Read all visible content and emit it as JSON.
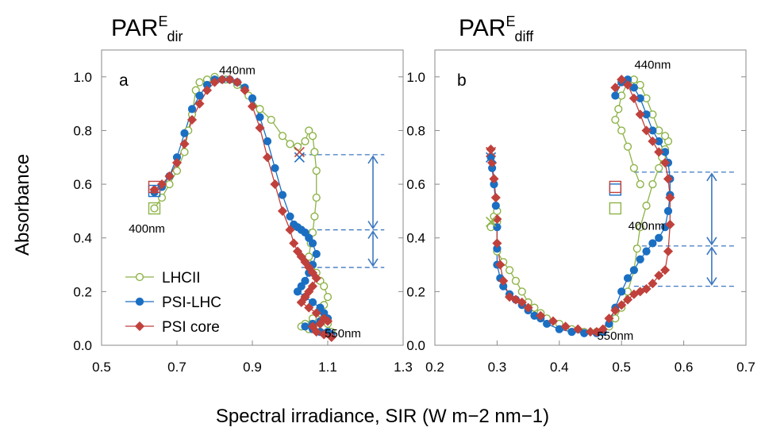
{
  "figure": {
    "ylabel": "Absorbance",
    "xlabel": "Spectral irradiance, SIR (W m−2 nm−1)",
    "legend": [
      {
        "name": "LHCII",
        "color": "#8DB347",
        "marker": "open-circle"
      },
      {
        "name": "PSI-LHC",
        "color": "#1B6FC2",
        "marker": "filled-circle"
      },
      {
        "name": "PSI core",
        "color": "#C0413C",
        "marker": "diamond"
      }
    ],
    "colors": {
      "arrow": "#3E78C0",
      "dashed": "#3E78C0"
    }
  },
  "chart_data": [
    {
      "type": "scatter",
      "panel_label": "a",
      "title_base": "PAR",
      "title_sup": "E",
      "title_sub": "dir",
      "xlim": [
        0.5,
        1.3
      ],
      "ylim": [
        0.0,
        1.1
      ],
      "xticks": [
        "0.5",
        "0.7",
        "0.9",
        "1.1",
        "1.3"
      ],
      "xtick_values": [
        0.5,
        0.7,
        0.9,
        1.1,
        1.3
      ],
      "yticks": [
        "0.0",
        "0.2",
        "0.4",
        "0.6",
        "0.8",
        "1.0"
      ],
      "ytick_values": [
        0.0,
        0.2,
        0.4,
        0.6,
        0.8,
        1.0
      ],
      "annotations": [
        {
          "text": "440nm",
          "x": 0.86,
          "y": 1.01
        },
        {
          "text": "400nm",
          "x": 0.62,
          "y": 0.42
        },
        {
          "text": "550nm",
          "x": 1.14,
          "y": 0.03
        }
      ],
      "series": [
        {
          "name": "LHCII",
          "x": [
            0.64,
            0.66,
            0.68,
            0.7,
            0.72,
            0.73,
            0.74,
            0.75,
            0.76,
            0.78,
            0.8,
            0.83,
            0.86,
            0.89,
            0.92,
            0.95,
            0.98,
            1.0,
            1.02,
            1.04,
            1.05,
            1.06,
            1.065,
            1.07,
            1.07,
            1.065,
            1.06,
            1.055,
            1.05,
            1.06,
            1.07,
            1.08,
            1.09,
            1.1,
            1.09,
            1.08,
            1.06,
            1.04,
            1.03,
            1.05,
            1.07,
            1.09,
            1.1,
            1.11
          ],
          "y": [
            0.51,
            0.55,
            0.6,
            0.65,
            0.72,
            0.8,
            0.86,
            0.95,
            0.98,
            0.99,
            1.0,
            0.99,
            0.97,
            0.93,
            0.88,
            0.84,
            0.78,
            0.75,
            0.74,
            0.76,
            0.8,
            0.78,
            0.72,
            0.65,
            0.55,
            0.48,
            0.42,
            0.38,
            0.33,
            0.3,
            0.27,
            0.24,
            0.22,
            0.18,
            0.15,
            0.12,
            0.1,
            0.08,
            0.07,
            0.06,
            0.06,
            0.07,
            0.08,
            0.05
          ]
        },
        {
          "name": "PSI-LHC",
          "x": [
            0.64,
            0.66,
            0.68,
            0.7,
            0.72,
            0.74,
            0.76,
            0.78,
            0.8,
            0.82,
            0.84,
            0.86,
            0.88,
            0.9,
            0.92,
            0.94,
            0.96,
            0.98,
            1.0,
            1.01,
            1.02,
            1.03,
            1.04,
            1.05,
            1.06,
            1.07,
            1.06,
            1.05,
            1.04,
            1.03,
            1.02,
            1.04,
            1.06,
            1.08,
            1.09,
            1.1,
            1.08,
            1.06,
            1.04,
            1.06,
            1.08,
            1.1,
            1.11
          ],
          "y": [
            0.57,
            0.59,
            0.63,
            0.7,
            0.79,
            0.88,
            0.93,
            0.97,
            0.99,
            0.99,
            0.99,
            0.98,
            0.96,
            0.92,
            0.85,
            0.76,
            0.66,
            0.56,
            0.48,
            0.45,
            0.44,
            0.43,
            0.42,
            0.4,
            0.38,
            0.34,
            0.3,
            0.27,
            0.24,
            0.22,
            0.2,
            0.18,
            0.16,
            0.14,
            0.12,
            0.1,
            0.09,
            0.08,
            0.07,
            0.06,
            0.05,
            0.05,
            0.04
          ]
        },
        {
          "name": "PSI core",
          "x": [
            0.64,
            0.66,
            0.68,
            0.7,
            0.72,
            0.74,
            0.76,
            0.78,
            0.8,
            0.82,
            0.84,
            0.86,
            0.88,
            0.9,
            0.92,
            0.94,
            0.96,
            0.98,
            1.0,
            1.01,
            1.02,
            1.03,
            1.04,
            1.05,
            1.06,
            1.07,
            1.06,
            1.05,
            1.04,
            1.03,
            1.05,
            1.07,
            1.09,
            1.1,
            1.08,
            1.06,
            1.07,
            1.09,
            1.11
          ],
          "y": [
            0.58,
            0.6,
            0.63,
            0.68,
            0.75,
            0.84,
            0.9,
            0.95,
            0.98,
            0.99,
            0.99,
            0.98,
            0.95,
            0.89,
            0.81,
            0.7,
            0.6,
            0.5,
            0.43,
            0.38,
            0.35,
            0.33,
            0.31,
            0.29,
            0.27,
            0.25,
            0.22,
            0.2,
            0.18,
            0.16,
            0.14,
            0.12,
            0.1,
            0.09,
            0.08,
            0.07,
            0.05,
            0.04,
            0.03
          ]
        }
      ],
      "start_markers": [
        {
          "series": "LHCII",
          "x": 0.64,
          "y": 0.51,
          "shape": "square"
        },
        {
          "series": "PSI-LHC",
          "x": 0.64,
          "y": 0.575,
          "shape": "square"
        },
        {
          "series": "PSI core",
          "x": 0.64,
          "y": 0.59,
          "shape": "square"
        },
        {
          "series": "PSI-LHC",
          "x": 1.025,
          "y": 0.7,
          "shape": "cross"
        },
        {
          "series": "PSI core",
          "x": 1.025,
          "y": 0.72,
          "shape": "cross"
        }
      ],
      "dashed_levels": [
        0.71,
        0.43,
        0.29
      ],
      "dashed_x_range": [
        1.03,
        1.25
      ],
      "arrows": [
        {
          "x": 1.22,
          "from": 0.71,
          "to": 0.43
        },
        {
          "x": 1.22,
          "from": 0.43,
          "to": 0.29
        }
      ]
    },
    {
      "type": "scatter",
      "panel_label": "b",
      "title_base": "PAR",
      "title_sup": "E",
      "title_sub": "diff",
      "xlim": [
        0.2,
        0.7
      ],
      "ylim": [
        0.0,
        1.1
      ],
      "xticks": [
        "0.2",
        "0.3",
        "0.4",
        "0.5",
        "0.6",
        "0.7"
      ],
      "xtick_values": [
        0.2,
        0.3,
        0.4,
        0.5,
        0.6,
        0.7
      ],
      "yticks": [
        "0.0",
        "0.2",
        "0.4",
        "0.6",
        "0.8",
        "1.0"
      ],
      "ytick_values": [
        0.0,
        0.2,
        0.4,
        0.6,
        0.8,
        1.0
      ],
      "annotations": [
        {
          "text": "440nm",
          "x": 0.55,
          "y": 1.03
        },
        {
          "text": "400nm",
          "x": 0.54,
          "y": 0.43
        },
        {
          "text": "550nm",
          "x": 0.49,
          "y": 0.02
        }
      ],
      "series": [
        {
          "name": "LHCII",
          "x": [
            0.29,
            0.295,
            0.3,
            0.3,
            0.3,
            0.31,
            0.32,
            0.33,
            0.34,
            0.35,
            0.36,
            0.37,
            0.38,
            0.4,
            0.42,
            0.44,
            0.46,
            0.48,
            0.49,
            0.5,
            0.51,
            0.52,
            0.525,
            0.53,
            0.54,
            0.55,
            0.56,
            0.565,
            0.57,
            0.575,
            0.57,
            0.56,
            0.55,
            0.54,
            0.53,
            0.52,
            0.51,
            0.5,
            0.495,
            0.49,
            0.5,
            0.51,
            0.52,
            0.53
          ],
          "y": [
            0.44,
            0.48,
            0.5,
            0.46,
            0.35,
            0.31,
            0.28,
            0.24,
            0.2,
            0.16,
            0.14,
            0.12,
            0.1,
            0.08,
            0.06,
            0.05,
            0.05,
            0.07,
            0.1,
            0.14,
            0.2,
            0.28,
            0.36,
            0.44,
            0.52,
            0.6,
            0.66,
            0.7,
            0.73,
            0.76,
            0.78,
            0.8,
            0.86,
            0.92,
            0.97,
            0.99,
            0.98,
            0.93,
            0.88,
            0.84,
            0.8,
            0.74,
            0.66,
            0.6
          ]
        },
        {
          "name": "PSI-LHC",
          "x": [
            0.29,
            0.292,
            0.295,
            0.298,
            0.3,
            0.3,
            0.3,
            0.305,
            0.31,
            0.32,
            0.33,
            0.34,
            0.35,
            0.36,
            0.37,
            0.38,
            0.4,
            0.42,
            0.44,
            0.46,
            0.47,
            0.48,
            0.49,
            0.5,
            0.51,
            0.52,
            0.53,
            0.54,
            0.55,
            0.56,
            0.57,
            0.575,
            0.578,
            0.578,
            0.575,
            0.57,
            0.56,
            0.55,
            0.54,
            0.53,
            0.52,
            0.51,
            0.5,
            0.49
          ],
          "y": [
            0.7,
            0.66,
            0.6,
            0.52,
            0.44,
            0.36,
            0.3,
            0.25,
            0.22,
            0.19,
            0.17,
            0.15,
            0.13,
            0.11,
            0.1,
            0.08,
            0.06,
            0.05,
            0.045,
            0.045,
            0.05,
            0.08,
            0.14,
            0.2,
            0.25,
            0.28,
            0.32,
            0.35,
            0.38,
            0.4,
            0.44,
            0.5,
            0.56,
            0.62,
            0.68,
            0.72,
            0.76,
            0.8,
            0.86,
            0.92,
            0.96,
            0.99,
            0.98,
            0.93
          ]
        },
        {
          "name": "PSI core",
          "x": [
            0.29,
            0.292,
            0.295,
            0.298,
            0.3,
            0.3,
            0.305,
            0.31,
            0.32,
            0.33,
            0.34,
            0.35,
            0.37,
            0.39,
            0.41,
            0.43,
            0.45,
            0.46,
            0.47,
            0.48,
            0.49,
            0.5,
            0.51,
            0.52,
            0.53,
            0.54,
            0.55,
            0.56,
            0.57,
            0.575,
            0.578,
            0.578,
            0.575,
            0.57,
            0.56,
            0.55,
            0.54,
            0.53,
            0.52,
            0.51,
            0.5,
            0.49
          ],
          "y": [
            0.73,
            0.68,
            0.62,
            0.55,
            0.47,
            0.38,
            0.3,
            0.24,
            0.18,
            0.17,
            0.16,
            0.14,
            0.11,
            0.09,
            0.07,
            0.06,
            0.05,
            0.05,
            0.06,
            0.1,
            0.13,
            0.15,
            0.17,
            0.19,
            0.2,
            0.21,
            0.23,
            0.26,
            0.28,
            0.35,
            0.45,
            0.55,
            0.62,
            0.68,
            0.72,
            0.76,
            0.8,
            0.86,
            0.92,
            0.97,
            0.99,
            0.96
          ]
        }
      ],
      "start_markers": [
        {
          "series": "LHCII",
          "x": 0.29,
          "y": 0.46,
          "shape": "cross"
        },
        {
          "series": "PSI-LHC",
          "x": 0.29,
          "y": 0.7,
          "shape": "cross"
        },
        {
          "series": "PSI core",
          "x": 0.29,
          "y": 0.72,
          "shape": "cross"
        },
        {
          "series": "LHCII",
          "x": 0.49,
          "y": 0.51,
          "shape": "square"
        },
        {
          "series": "PSI-LHC",
          "x": 0.49,
          "y": 0.58,
          "shape": "square"
        },
        {
          "series": "PSI core",
          "x": 0.49,
          "y": 0.59,
          "shape": "square"
        }
      ],
      "dashed_levels": [
        0.645,
        0.37,
        0.22
      ],
      "dashed_x_range": [
        0.52,
        0.685
      ],
      "arrows": [
        {
          "x": 0.645,
          "from": 0.645,
          "to": 0.37
        },
        {
          "x": 0.645,
          "from": 0.37,
          "to": 0.22
        }
      ]
    }
  ]
}
